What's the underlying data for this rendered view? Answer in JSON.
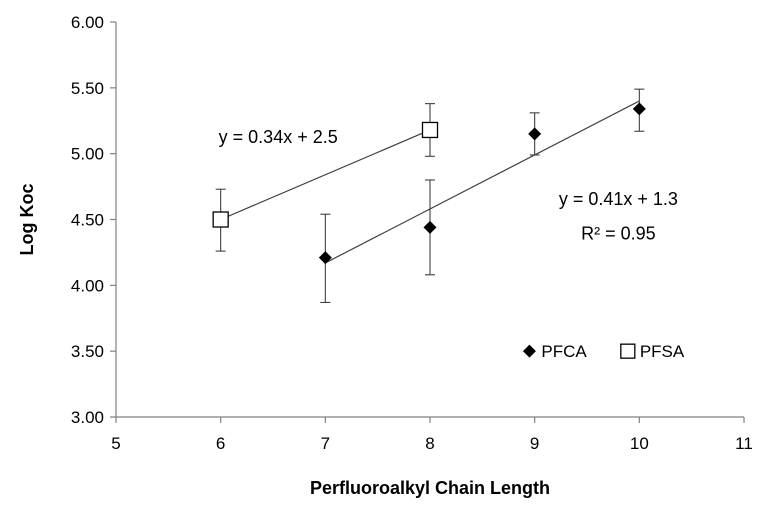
{
  "chart_data": {
    "type": "scatter",
    "title": "",
    "xlabel": "Perfluoroalkyl Chain Length",
    "ylabel": "Log Koc",
    "xlim": [
      5,
      11
    ],
    "ylim": [
      3.0,
      6.0
    ],
    "x_ticks": [
      "5",
      "6",
      "7",
      "8",
      "9",
      "10",
      "11"
    ],
    "y_ticks": [
      "3.00",
      "3.50",
      "4.00",
      "4.50",
      "5.00",
      "5.50",
      "6.00"
    ],
    "grid": false,
    "legend_position": "bottom-right",
    "series": [
      {
        "name": "PFCA",
        "marker": "filled-diamond",
        "color": "#000000",
        "points": [
          {
            "x": 7,
            "y": 4.21,
            "err_low": 3.87,
            "err_high": 4.54
          },
          {
            "x": 8,
            "y": 4.44,
            "err_low": 4.08,
            "err_high": 4.8
          },
          {
            "x": 9,
            "y": 5.15,
            "err_low": 4.99,
            "err_high": 5.31
          },
          {
            "x": 10,
            "y": 5.34,
            "err_low": 5.17,
            "err_high": 5.49
          }
        ],
        "trendline": {
          "slope": 0.41,
          "intercept": 1.3,
          "x_range": [
            7,
            10
          ]
        }
      },
      {
        "name": "PFSA",
        "marker": "open-square",
        "color": "#000000",
        "points": [
          {
            "x": 6,
            "y": 4.5,
            "err_low": 4.26,
            "err_high": 4.73
          },
          {
            "x": 8,
            "y": 5.18,
            "err_low": 4.98,
            "err_high": 5.38
          }
        ],
        "trendline": {
          "slope": 0.34,
          "intercept": 2.5,
          "x_range": [
            6,
            8
          ]
        }
      }
    ],
    "annotations": [
      {
        "text": "y = 0.34x + 2.5",
        "series": "PFSA"
      },
      {
        "text": "y = 0.41x + 1.3",
        "series": "PFCA"
      },
      {
        "text": "R² = 0.95",
        "series": "PFCA"
      }
    ]
  }
}
